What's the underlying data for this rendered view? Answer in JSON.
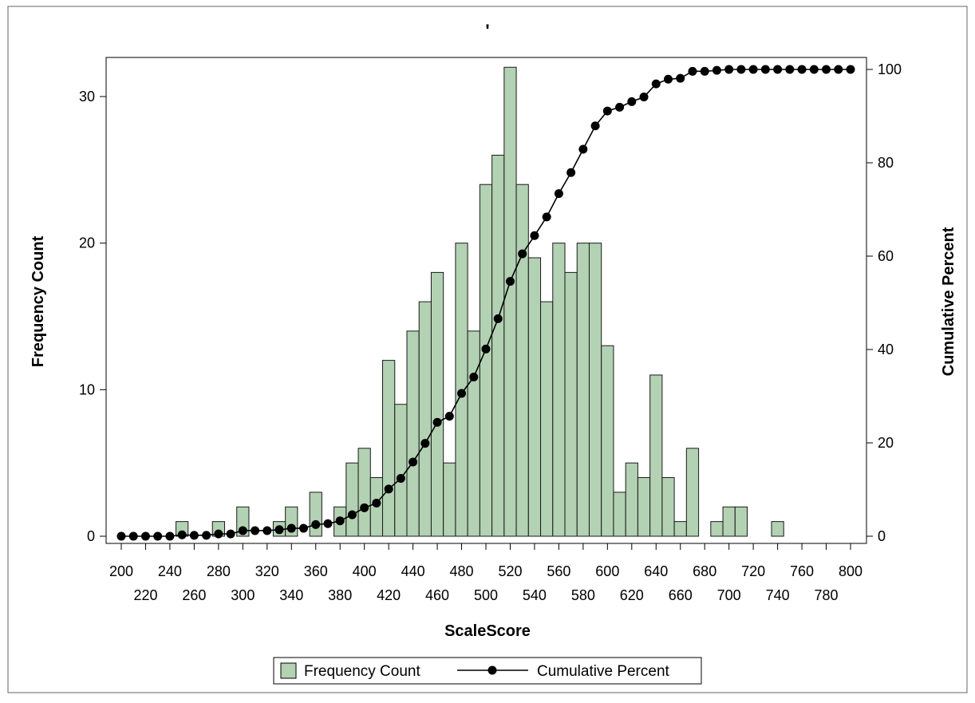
{
  "chart_data": {
    "type": "bar",
    "title": "'",
    "xlabel": "ScaleScore",
    "ylabel": "Frequency Count",
    "y2label": "Cumulative Percent",
    "xlim": [
      200,
      800
    ],
    "ylim": [
      0,
      33
    ],
    "y2lim": [
      0,
      102
    ],
    "x_ticks": [
      200,
      220,
      240,
      260,
      280,
      300,
      320,
      340,
      360,
      380,
      400,
      420,
      440,
      460,
      480,
      500,
      520,
      540,
      560,
      580,
      600,
      620,
      640,
      660,
      680,
      700,
      720,
      740,
      760,
      780,
      800
    ],
    "y_ticks": [
      0,
      10,
      20,
      30
    ],
    "y2_ticks": [
      0,
      20,
      40,
      60,
      80,
      100
    ],
    "grid": false,
    "legend_position": "bottom-center",
    "colors": {
      "bar_fill": "#b3d1b3",
      "bar_stroke": "#1a1a1a",
      "line": "#000000",
      "marker": "#000000"
    },
    "series": [
      {
        "name": "Frequency Count",
        "kind": "bar",
        "x": [
          250,
          280,
          300,
          330,
          340,
          360,
          380,
          390,
          400,
          410,
          420,
          430,
          440,
          450,
          460,
          470,
          480,
          490,
          500,
          510,
          520,
          530,
          540,
          550,
          560,
          570,
          580,
          590,
          600,
          610,
          620,
          630,
          640,
          650,
          660,
          670,
          690,
          700,
          710,
          740
        ],
        "values": [
          1,
          1,
          2,
          1,
          2,
          3,
          2,
          5,
          6,
          4,
          12,
          9,
          14,
          16,
          18,
          5,
          20,
          14,
          24,
          26,
          32,
          24,
          19,
          16,
          20,
          18,
          20,
          20,
          13,
          3,
          5,
          4,
          11,
          4,
          1,
          6,
          1,
          2,
          2,
          1
        ]
      },
      {
        "name": "Cumulative Percent",
        "kind": "line",
        "x": [
          200,
          210,
          220,
          230,
          240,
          250,
          260,
          270,
          280,
          290,
          300,
          310,
          320,
          330,
          340,
          350,
          360,
          370,
          380,
          390,
          400,
          410,
          420,
          430,
          440,
          450,
          460,
          470,
          480,
          490,
          500,
          510,
          520,
          530,
          540,
          550,
          560,
          570,
          580,
          590,
          600,
          610,
          620,
          630,
          640,
          650,
          660,
          670,
          680,
          690,
          700,
          710,
          720,
          730,
          740,
          750,
          760,
          770,
          780,
          790,
          800
        ],
        "values": [
          0,
          0,
          0,
          0,
          0,
          0.3,
          0.2,
          0.2,
          0.5,
          0.5,
          1.2,
          1.2,
          1.2,
          1.4,
          1.7,
          1.7,
          2.5,
          2.7,
          3.3,
          4.6,
          6.1,
          7.1,
          10.1,
          12.4,
          15.9,
          19.9,
          24.4,
          25.7,
          30.6,
          34.1,
          40.1,
          46.6,
          54.6,
          60.5,
          64.4,
          68.4,
          73.4,
          77.9,
          82.9,
          87.9,
          91.1,
          91.9,
          93.1,
          94.1,
          96.9,
          97.9,
          98.1,
          99.6,
          99.6,
          99.8,
          100,
          100,
          100,
          100,
          100,
          100,
          100,
          100,
          100,
          100,
          100
        ]
      }
    ]
  }
}
